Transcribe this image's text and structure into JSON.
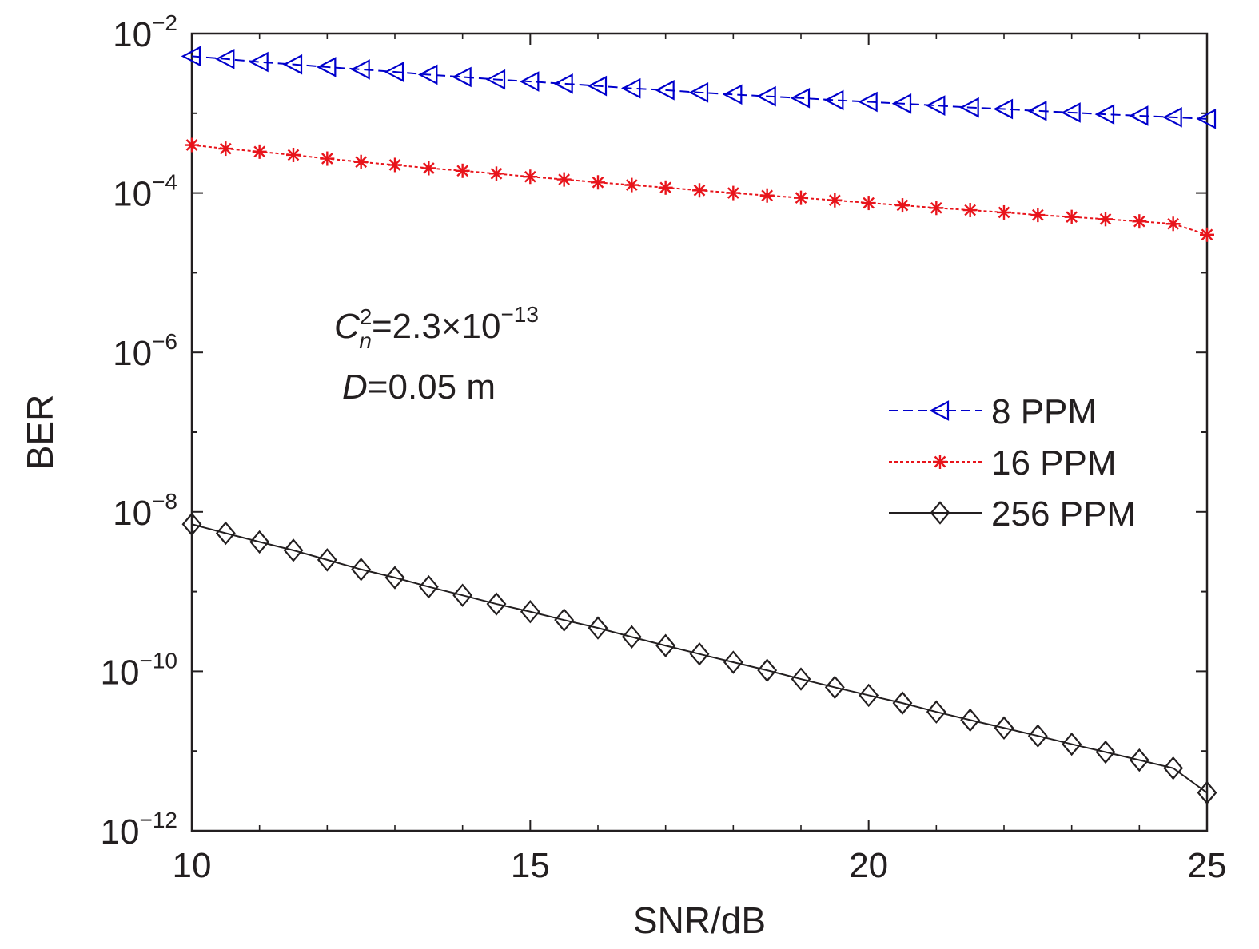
{
  "chart_data": {
    "type": "line",
    "xlabel": "SNR/dB",
    "ylabel": "BER",
    "xlim": [
      10,
      25
    ],
    "ylim": [
      1e-12,
      0.01
    ],
    "yscale": "log",
    "grid": false,
    "legend_position": "right",
    "x_ticks": [
      {
        "value": 10,
        "label": "10"
      },
      {
        "value": 15,
        "label": "15"
      },
      {
        "value": 20,
        "label": "20"
      },
      {
        "value": 25,
        "label": "25"
      }
    ],
    "y_ticks": [
      {
        "exp": -2,
        "base": "10",
        "sup": "−2"
      },
      {
        "exp": -4,
        "base": "10",
        "sup": "−4"
      },
      {
        "exp": -6,
        "base": "10",
        "sup": "−6"
      },
      {
        "exp": -8,
        "base": "10",
        "sup": "−8"
      },
      {
        "exp": -10,
        "base": "10",
        "sup": "−10"
      },
      {
        "exp": -12,
        "base": "10",
        "sup": "−12"
      }
    ],
    "annotation": {
      "line1_var": "C",
      "line1_sub": "n",
      "line1_sup": "2",
      "line1_rest": "=2.3×10",
      "line1_exp": "−13",
      "line2_var": "D",
      "line2_rest": "=0.05 m"
    },
    "x": [
      10,
      10.5,
      11,
      11.5,
      12,
      12.5,
      13,
      13.5,
      14,
      14.5,
      15,
      15.5,
      16,
      16.5,
      17,
      17.5,
      18,
      18.5,
      19,
      19.5,
      20,
      20.5,
      21,
      21.5,
      22,
      22.5,
      23,
      23.5,
      24,
      24.5,
      25
    ],
    "series": [
      {
        "name": "8 PPM",
        "color": "#0000cc",
        "line_style": "dashed",
        "marker": "left-triangle",
        "values": [
          0.0052,
          0.0048,
          0.0044,
          0.0041,
          0.0038,
          0.00355,
          0.0033,
          0.00305,
          0.00285,
          0.00265,
          0.0025,
          0.00235,
          0.0022,
          0.00205,
          0.00195,
          0.00182,
          0.00172,
          0.00163,
          0.00155,
          0.00146,
          0.00139,
          0.00132,
          0.00125,
          0.00118,
          0.00113,
          0.00107,
          0.00102,
          0.00097,
          0.00093,
          0.00089,
          0.00085
        ]
      },
      {
        "name": "16 PPM",
        "color": "#e8141b",
        "line_style": "dotted",
        "marker": "asterisk",
        "values": [
          0.0004,
          0.00036,
          0.00033,
          0.0003,
          0.00027,
          0.000245,
          0.000225,
          0.000205,
          0.00019,
          0.000175,
          0.00016,
          0.000148,
          0.000136,
          0.000126,
          0.000117,
          0.000108,
          0.0001,
          9.3e-05,
          8.7e-05,
          8.1e-05,
          7.5e-05,
          7e-05,
          6.5e-05,
          6.1e-05,
          5.7e-05,
          5.3e-05,
          5e-05,
          4.7e-05,
          4.4e-05,
          4.1e-05,
          3e-05
        ]
      },
      {
        "name": "256 PPM",
        "color": "#231f20",
        "line_style": "solid",
        "marker": "diamond",
        "values": [
          7e-09,
          5.4e-09,
          4.2e-09,
          3.3e-09,
          2.5e-09,
          1.9e-09,
          1.5e-09,
          1.15e-09,
          9e-10,
          7e-10,
          5.6e-10,
          4.4e-10,
          3.5e-10,
          2.7e-10,
          2.1e-10,
          1.65e-10,
          1.3e-10,
          1.03e-10,
          8e-11,
          6.3e-11,
          5e-11,
          4e-11,
          3.1e-11,
          2.45e-11,
          1.95e-11,
          1.55e-11,
          1.22e-11,
          9.7e-12,
          7.7e-12,
          6.1e-12,
          3e-12
        ]
      }
    ]
  }
}
